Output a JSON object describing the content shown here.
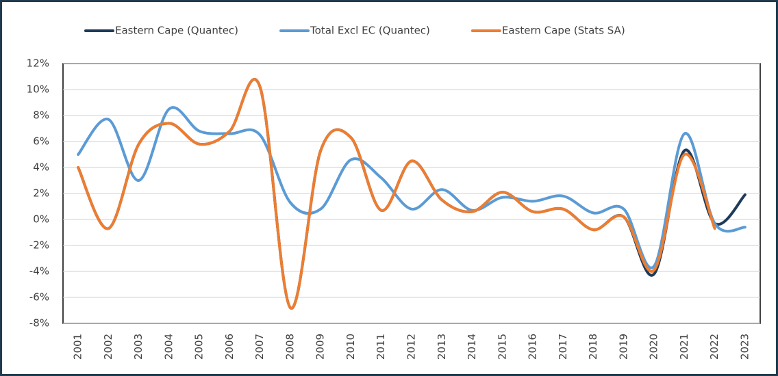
{
  "chart_data": {
    "type": "line",
    "categories": [
      "2001",
      "2002",
      "2003",
      "2004",
      "2005",
      "2006",
      "2007",
      "2008",
      "2009",
      "2010",
      "2011",
      "2012",
      "2013",
      "2014",
      "2015",
      "2016",
      "2017",
      "2018",
      "2019",
      "2020",
      "2021",
      "2022",
      "2023"
    ],
    "series": [
      {
        "name": "Eastern Cape (Quantec)",
        "color": "#1f3b5a",
        "values": [
          4,
          -0.7,
          5.8,
          7.4,
          5.8,
          6.8,
          10.2,
          -6.8,
          5.3,
          6.3,
          0.7,
          4.5,
          1.5,
          0.6,
          2.1,
          0.6,
          0.8,
          -0.8,
          0.2,
          -4.2,
          5.3,
          -0.3,
          1.9
        ]
      },
      {
        "name": "Total Excl EC (Quantec)",
        "color": "#5b9bd5",
        "values": [
          5,
          7.7,
          3,
          8.5,
          6.8,
          6.6,
          6.5,
          1.3,
          0.8,
          4.6,
          3.2,
          0.8,
          2.3,
          0.7,
          1.7,
          1.4,
          1.8,
          0.5,
          0.8,
          -3.6,
          6.6,
          -0.3,
          -0.6
        ]
      },
      {
        "name": "Eastern Cape (Stats SA)",
        "color": "#ed7d31",
        "values": [
          4,
          -0.7,
          5.8,
          7.4,
          5.8,
          6.8,
          10.2,
          -6.8,
          5.3,
          6.3,
          0.7,
          4.5,
          1.5,
          0.6,
          2.1,
          0.6,
          0.8,
          -0.8,
          0.2,
          -3.9,
          5,
          -0.7,
          null
        ]
      }
    ],
    "ylim": [
      -8,
      12
    ],
    "yticks": [
      {
        "value": -8,
        "label": "-8%"
      },
      {
        "value": -6,
        "label": "-6%"
      },
      {
        "value": -4,
        "label": "-4%"
      },
      {
        "value": -2,
        "label": "-2%"
      },
      {
        "value": 0,
        "label": "0%"
      },
      {
        "value": 2,
        "label": "2%"
      },
      {
        "value": 4,
        "label": "4%"
      },
      {
        "value": 6,
        "label": "6%"
      },
      {
        "value": 8,
        "label": "8%"
      },
      {
        "value": 10,
        "label": "10%"
      },
      {
        "value": 12,
        "label": "12%"
      }
    ],
    "grid": true,
    "legend": "top"
  }
}
